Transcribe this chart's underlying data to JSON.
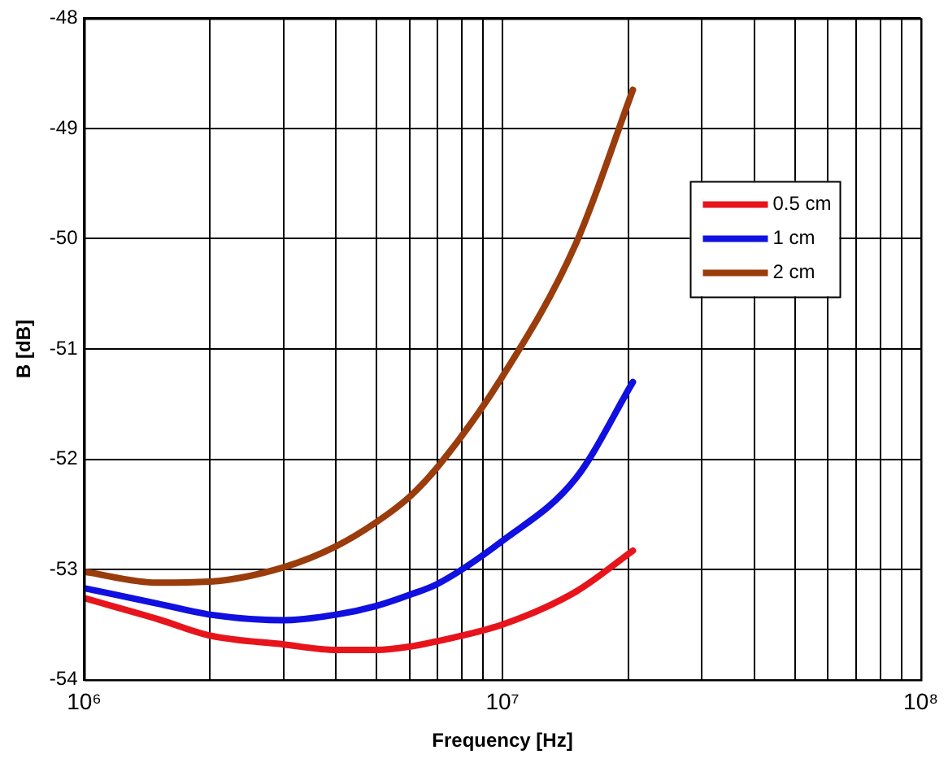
{
  "chart_data": {
    "type": "line",
    "xlabel": "Frequency [Hz]",
    "ylabel": "B [dB]",
    "x": [
      1000000,
      1500000,
      2000000,
      3000000,
      4000000,
      5000000,
      6000000,
      7000000,
      10000000,
      15000000,
      20500000
    ],
    "series": [
      {
        "name": "0.5 cm",
        "color": "#e8141c",
        "values": [
          -53.26,
          -53.45,
          -53.6,
          -53.68,
          -53.73,
          -53.73,
          -53.7,
          -53.65,
          -53.5,
          -53.2,
          -52.83
        ]
      },
      {
        "name": "1 cm",
        "color": "#1010e0",
        "values": [
          -53.17,
          -53.31,
          -53.41,
          -53.46,
          -53.41,
          -53.33,
          -53.23,
          -53.13,
          -52.74,
          -52.17,
          -51.3
        ]
      },
      {
        "name": "2 cm",
        "color": "#9a3c0c",
        "values": [
          -53.02,
          -53.12,
          -53.11,
          -52.98,
          -52.79,
          -52.57,
          -52.34,
          -52.07,
          -51.25,
          -50.04,
          -48.65
        ]
      }
    ],
    "log": "x",
    "xlim": [
      1000000,
      100000000
    ],
    "xticks": [
      {
        "value": 1000000,
        "label": "10⁶"
      },
      {
        "value": 2000000,
        "label": null
      },
      {
        "value": 3000000,
        "label": null
      },
      {
        "value": 4000000,
        "label": null
      },
      {
        "value": 5000000,
        "label": null
      },
      {
        "value": 6000000,
        "label": null
      },
      {
        "value": 7000000,
        "label": null
      },
      {
        "value": 8000000,
        "label": null
      },
      {
        "value": 9000000,
        "label": null
      },
      {
        "value": 10000000,
        "label": "10⁷"
      },
      {
        "value": 20000000,
        "label": null
      },
      {
        "value": 30000000,
        "label": null
      },
      {
        "value": 40000000,
        "label": null
      },
      {
        "value": 50000000,
        "label": null
      },
      {
        "value": 60000000,
        "label": null
      },
      {
        "value": 70000000,
        "label": null
      },
      {
        "value": 80000000,
        "label": null
      },
      {
        "value": 90000000,
        "label": null
      },
      {
        "value": 100000000,
        "label": "10⁸"
      }
    ],
    "ylim": [
      -54,
      -48
    ],
    "yticks": [
      -54,
      -53,
      -52,
      -51,
      -50,
      -49,
      -48
    ],
    "grid": true,
    "legend": "top right",
    "marker": "none",
    "line_style": "solid"
  }
}
